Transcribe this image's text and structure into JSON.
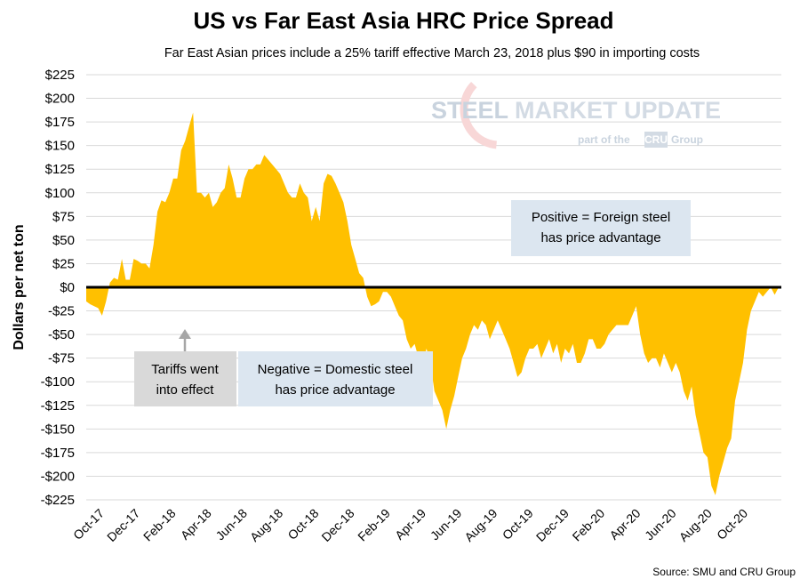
{
  "chart_data": {
    "type": "area",
    "title": "US vs Far East Asia HRC Price Spread",
    "subtitle": "Far East Asian prices include a 25% tariff effective March 23, 2018 plus $90 in importing costs",
    "ylabel": "Dollars per net ton",
    "xlabel": "",
    "ylim": [
      -225,
      225
    ],
    "yticks": [
      225,
      200,
      175,
      150,
      125,
      100,
      75,
      50,
      25,
      0,
      -25,
      -50,
      -75,
      -100,
      -125,
      -150,
      -175,
      -200,
      -225
    ],
    "ytick_labels": [
      "$225",
      "$200",
      "$175",
      "$150",
      "$125",
      "$100",
      "$75",
      "$50",
      "$25",
      "$0",
      "-$25",
      "-$50",
      "-$75",
      "-$100",
      "-$125",
      "-$150",
      "-$175",
      "-$200",
      "-$225"
    ],
    "xtick_labels": [
      "Oct-17",
      "Dec-17",
      "Feb-18",
      "Apr-18",
      "Jun-18",
      "Aug-18",
      "Oct-18",
      "Dec-18",
      "Feb-19",
      "Apr-19",
      "Jun-19",
      "Aug-19",
      "Oct-19",
      "Dec-19",
      "Feb-20",
      "Apr-20",
      "Jun-20",
      "Aug-20",
      "Oct-20"
    ],
    "series": [
      {
        "name": "HRC Price Spread",
        "color": "#FFC000",
        "values": [
          -15,
          -18,
          -20,
          -22,
          -30,
          -15,
          5,
          10,
          8,
          30,
          8,
          8,
          30,
          28,
          25,
          25,
          20,
          45,
          80,
          92,
          90,
          100,
          115,
          115,
          145,
          155,
          170,
          185,
          100,
          100,
          95,
          100,
          85,
          90,
          100,
          105,
          130,
          115,
          95,
          95,
          115,
          125,
          125,
          130,
          130,
          140,
          135,
          130,
          125,
          120,
          110,
          100,
          95,
          95,
          110,
          100,
          95,
          70,
          85,
          70,
          110,
          120,
          118,
          110,
          100,
          90,
          70,
          45,
          30,
          15,
          10,
          -10,
          -20,
          -18,
          -15,
          -5,
          -5,
          -10,
          -20,
          -30,
          -35,
          -55,
          -65,
          -60,
          -75,
          -80,
          -65,
          -80,
          -110,
          -120,
          -130,
          -150,
          -130,
          -115,
          -95,
          -75,
          -65,
          -50,
          -40,
          -45,
          -35,
          -40,
          -55,
          -45,
          -35,
          -45,
          -55,
          -65,
          -80,
          -95,
          -90,
          -75,
          -65,
          -65,
          -60,
          -75,
          -65,
          -55,
          -70,
          -60,
          -80,
          -65,
          -70,
          -60,
          -80,
          -80,
          -70,
          -55,
          -55,
          -65,
          -65,
          -60,
          -50,
          -45,
          -40,
          -40,
          -40,
          -40,
          -30,
          -20,
          -50,
          -70,
          -80,
          -75,
          -75,
          -85,
          -70,
          -80,
          -90,
          -80,
          -90,
          -110,
          -120,
          -105,
          -135,
          -155,
          -175,
          -180,
          -210,
          -220,
          -200,
          -185,
          -170,
          -160,
          -120,
          -100,
          -80,
          -45,
          -25,
          -15,
          -5,
          -10,
          -5,
          0,
          -8,
          0
        ]
      }
    ],
    "grid": true,
    "legend": "none",
    "annotations": {
      "tariff_note": [
        "Tariffs went",
        "into effect"
      ],
      "negative_note": [
        "Negative = Domestic steel",
        "has price advantage"
      ],
      "positive_note": [
        "Positive = Foreign steel",
        "has price advantage"
      ]
    },
    "source": "Source: SMU and CRU Group"
  },
  "watermark": {
    "brand_main_light": "STEEL",
    "brand_main_dark": " MARKET UPDATE",
    "brand_sub": "part of the",
    "brand_box": "CRU",
    "brand_group": "Group"
  },
  "colors": {
    "area": "#FFC000",
    "annotation_box": "#dce6f0",
    "tariff_box": "#d9d9d9",
    "arrow": "#a6a6a6",
    "grid": "#d9d9d9"
  }
}
